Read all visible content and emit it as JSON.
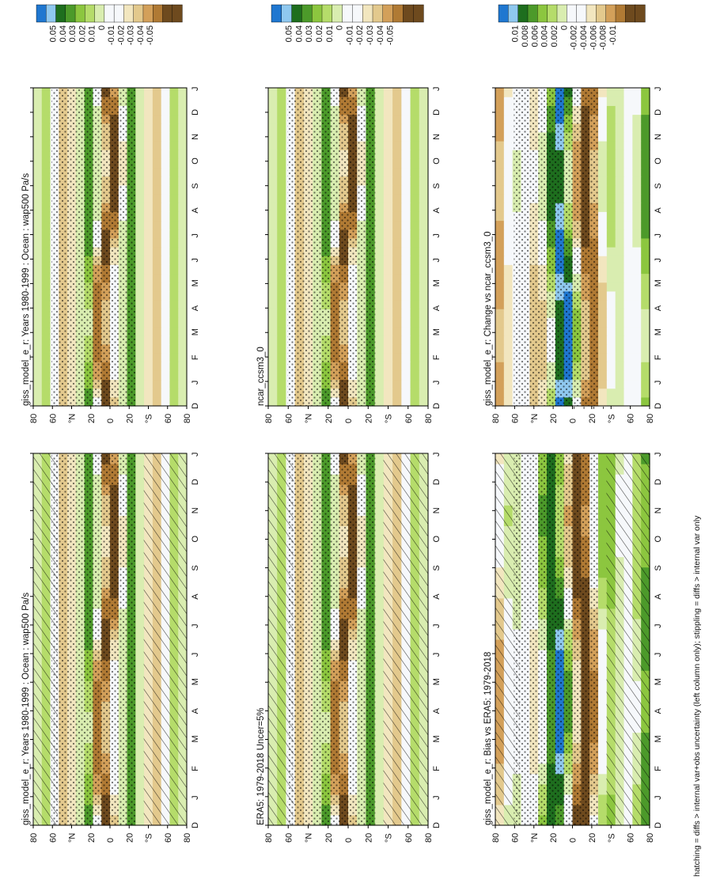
{
  "figure": {
    "footnote": "hatching = diffs > internal var+obs uncertainty (left column only); stippling = diffs > internal var only",
    "colors": {
      "blue_dark": "#1f77d0",
      "blue_light": "#8fc8ef",
      "green_dark": "#1e6e1e",
      "green_mid": "#4c9a2a",
      "green": "#8cc63f",
      "green_light": "#b5dc6a",
      "green_pale": "#d9edb0",
      "white": "#f6f8fb",
      "tan_pale": "#f2e6bf",
      "tan": "#e3c98d",
      "brown_light": "#d3a05a",
      "brown": "#b07a34",
      "brown_dark": "#6e4a1e"
    }
  },
  "chart_data": [
    {
      "panel": "top-left",
      "type": "heatmap",
      "title": "giss_model_e_r: Years 1980-1999 : Ocean : wap500 Pa/s",
      "x_ticks": [
        "D",
        "J",
        "F",
        "M",
        "A",
        "M",
        "J",
        "J",
        "A",
        "S",
        "O",
        "N",
        "D",
        "J"
      ],
      "y_ticks": [
        "80",
        "60",
        "°N",
        "20",
        "0",
        "20",
        "°S",
        "60",
        "80"
      ],
      "y_ticks_note": "latitude axis runs 80°N to 80°S",
      "colorbar": [
        "0.05",
        "0.04",
        "0.03",
        "0.02",
        "0.01",
        "0",
        "-0.01",
        "-0.02",
        "-0.03",
        "-0.04",
        "-0.05"
      ],
      "hatching": true,
      "stippling": true
    },
    {
      "panel": "top-right",
      "type": "heatmap",
      "title": "giss_model_e_r: Years 1980-1999 : Ocean : wap500 Pa/s",
      "x_ticks": [
        "D",
        "J",
        "F",
        "M",
        "A",
        "M",
        "J",
        "J",
        "A",
        "S",
        "O",
        "N",
        "D",
        "J"
      ],
      "y_ticks": [
        "80",
        "60",
        "°N",
        "20",
        "0",
        "20",
        "°S",
        "60",
        "80"
      ],
      "colorbar": [
        "0.05",
        "0.04",
        "0.03",
        "0.02",
        "0.01",
        "0",
        "-0.01",
        "-0.02",
        "-0.03",
        "-0.04",
        "-0.05"
      ],
      "hatching": false,
      "stippling": true
    },
    {
      "panel": "middle-left",
      "type": "heatmap",
      "title": "ERA5: 1979-2018 Uncer=5%",
      "x_ticks": [
        "D",
        "J",
        "F",
        "M",
        "A",
        "M",
        "J",
        "J",
        "A",
        "S",
        "O",
        "N",
        "D",
        "J"
      ],
      "y_ticks": [
        "80",
        "60",
        "°N",
        "20",
        "0",
        "20",
        "°S",
        "60",
        "80"
      ],
      "colorbar": [
        "0.05",
        "0.04",
        "0.03",
        "0.02",
        "0.01",
        "0",
        "-0.01",
        "-0.02",
        "-0.03",
        "-0.04",
        "-0.05"
      ],
      "hatching": true,
      "stippling": true
    },
    {
      "panel": "middle-right",
      "type": "heatmap",
      "title": "ncar_ccsm3_0",
      "x_ticks": [
        "D",
        "J",
        "F",
        "M",
        "A",
        "M",
        "J",
        "J",
        "A",
        "S",
        "O",
        "N",
        "D",
        "J"
      ],
      "y_ticks": [
        "80",
        "60",
        "°N",
        "20",
        "0",
        "20",
        "°S",
        "60",
        "80"
      ],
      "colorbar": [
        "0.05",
        "0.04",
        "0.03",
        "0.02",
        "0.01",
        "0",
        "-0.01",
        "-0.02",
        "-0.03",
        "-0.04",
        "-0.05"
      ],
      "hatching": false,
      "stippling": true
    },
    {
      "panel": "bottom-left",
      "type": "heatmap",
      "title": "giss_model_e_r: Bias vs ERA5: 1979-2018",
      "x_ticks": [
        "D",
        "J",
        "F",
        "M",
        "A",
        "M",
        "J",
        "J",
        "A",
        "S",
        "O",
        "N",
        "D",
        "J"
      ],
      "y_ticks": [
        "80",
        "60",
        "°N",
        "20",
        "0",
        "20",
        "°S",
        "60",
        "80"
      ],
      "colorbar": [
        "0.01",
        "0.008",
        "0.006",
        "0.004",
        "0.002",
        "0",
        "-0.002",
        "-0.004",
        "-0.006",
        "-0.008",
        "-0.01"
      ],
      "hatching": true,
      "stippling": true
    },
    {
      "panel": "bottom-right",
      "type": "heatmap",
      "title": "giss_model_e_r: Change vs ncar_ccsm3_0",
      "x_ticks": [
        "D",
        "J",
        "F",
        "M",
        "A",
        "M",
        "J",
        "J",
        "A",
        "S",
        "O",
        "N",
        "D",
        "J"
      ],
      "y_ticks": [
        "80",
        "60",
        "°N",
        "20",
        "0",
        "20",
        "°S",
        "60",
        "80"
      ],
      "colorbar": [
        "0.01",
        "0.008",
        "0.006",
        "0.004",
        "0.002",
        "0",
        "-0.002",
        "-0.004",
        "-0.006",
        "-0.008",
        "-0.01"
      ],
      "hatching": false,
      "stippling": true
    }
  ]
}
